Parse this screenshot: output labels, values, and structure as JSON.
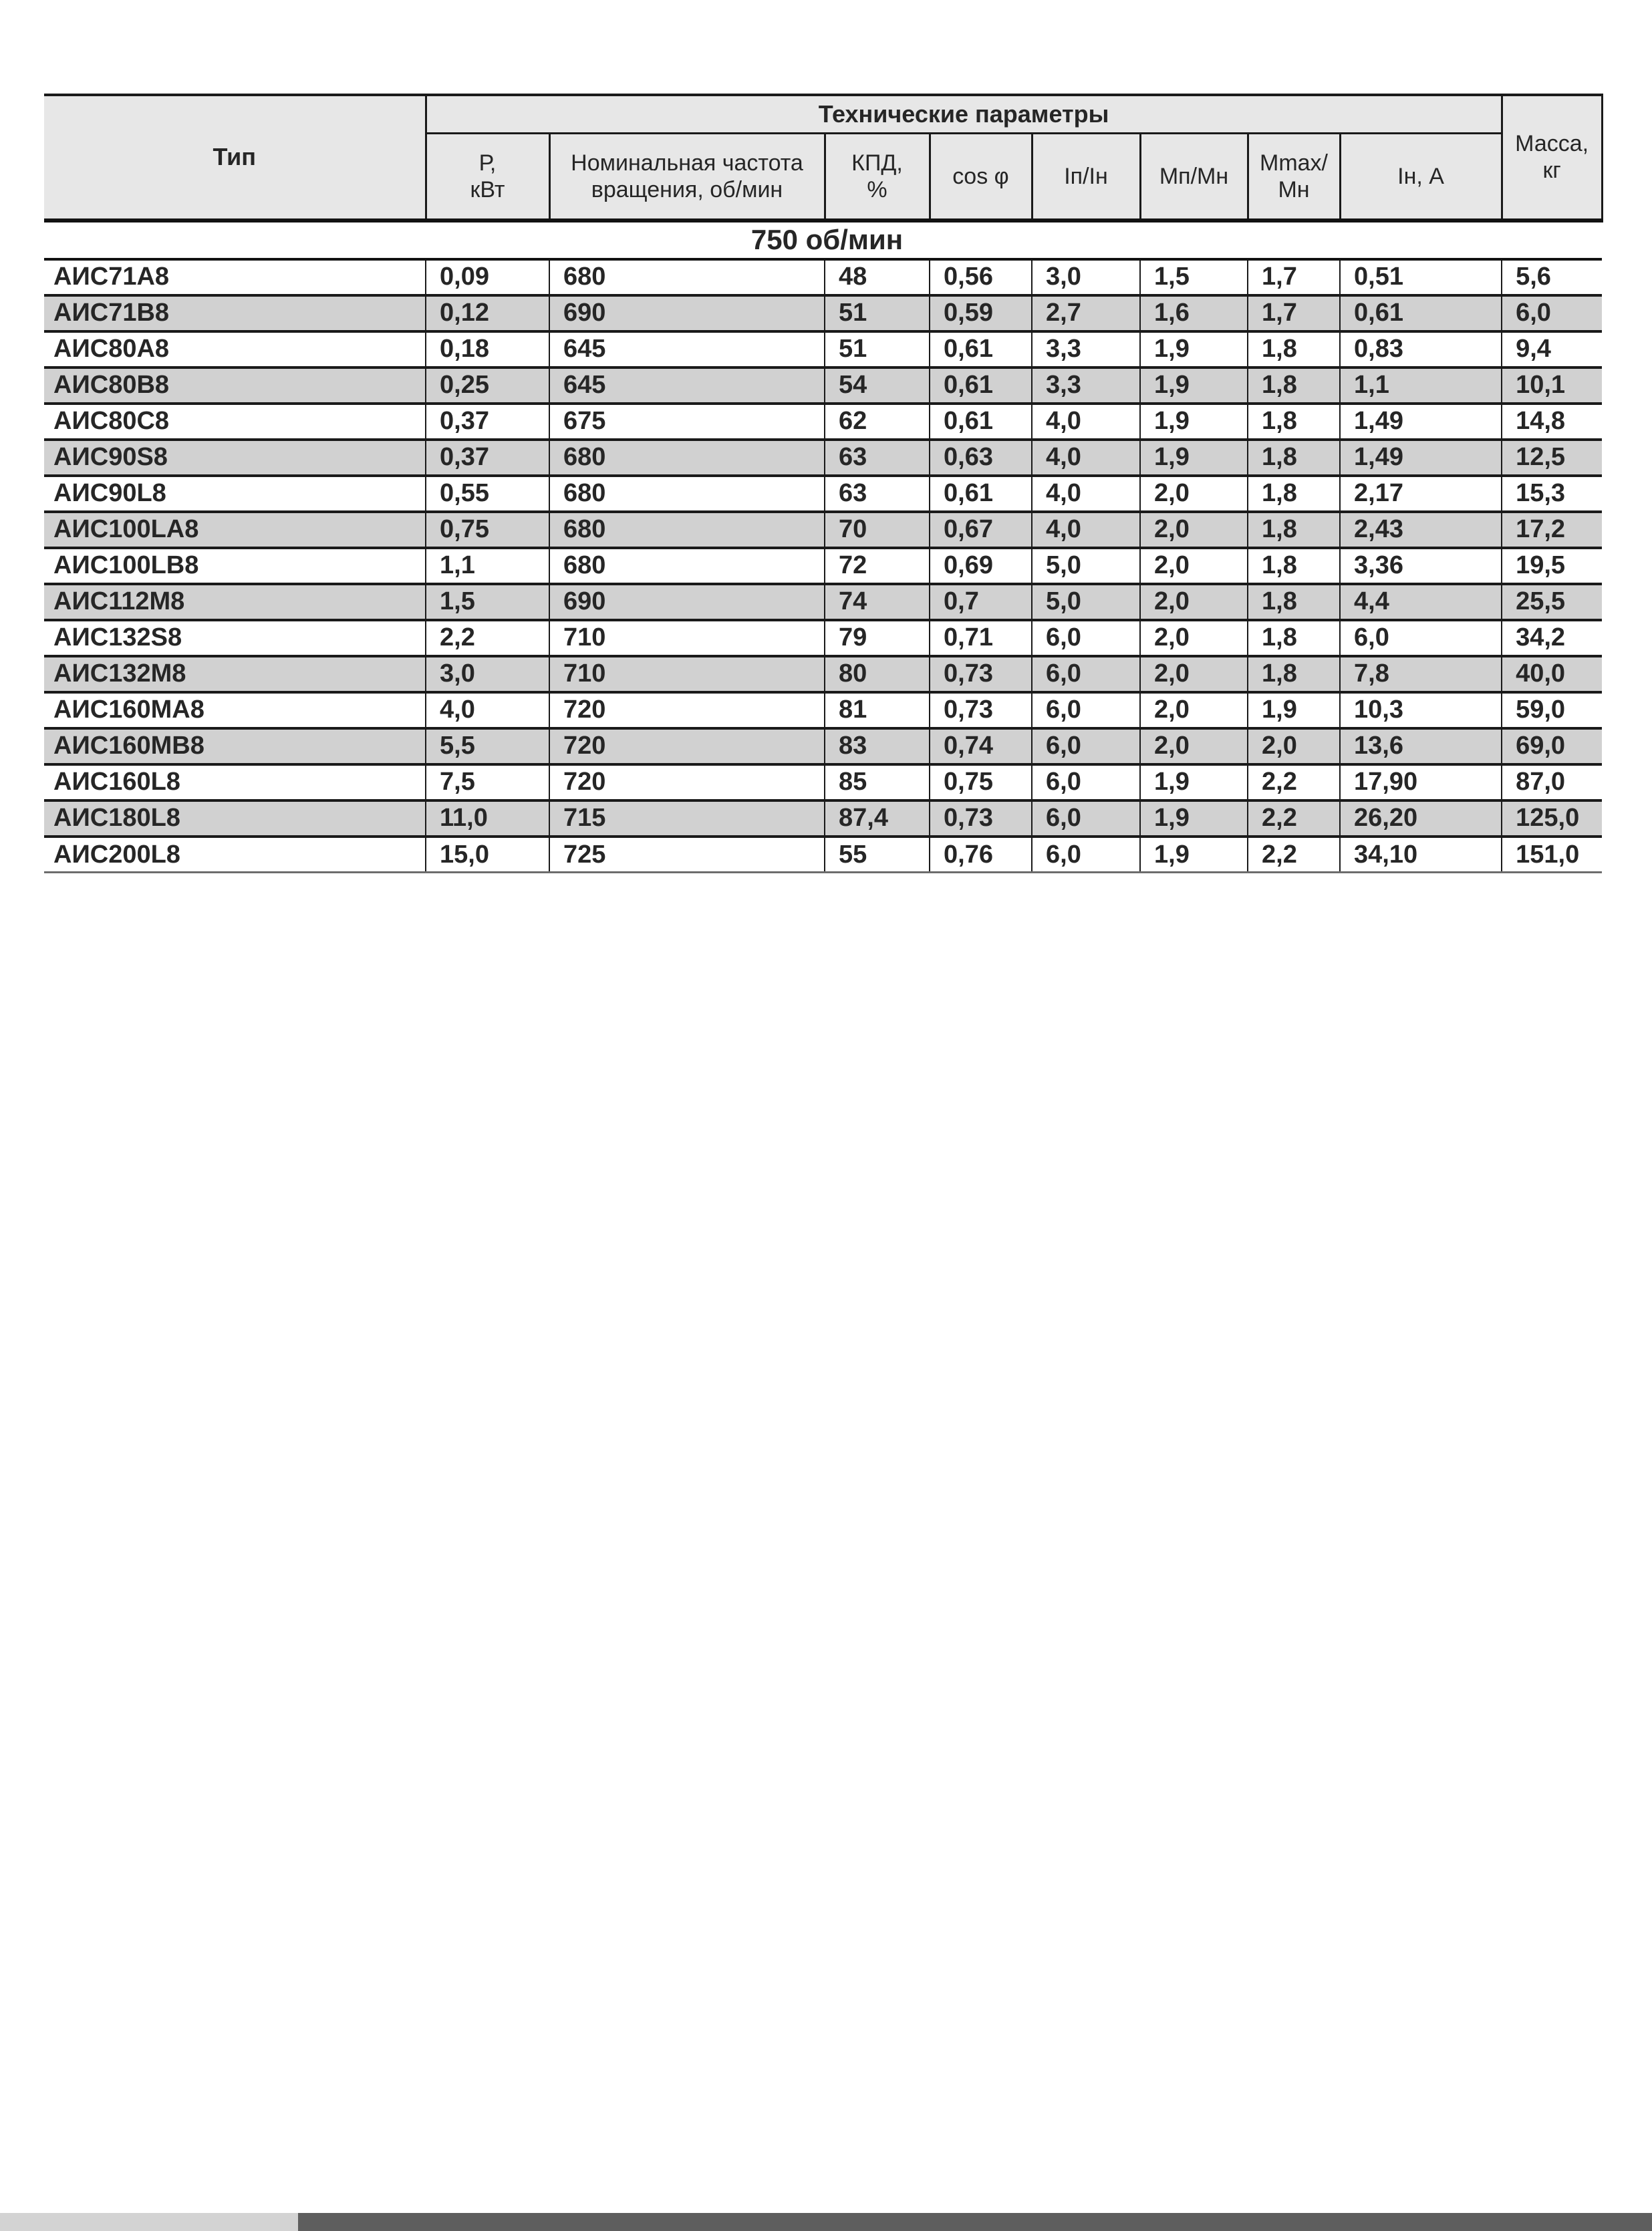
{
  "table": {
    "header": {
      "type": "Тип",
      "group": "Технические параметры",
      "sub": [
        "Р,\nкВт",
        "Номинальная частота\nвращения, об/мин",
        "КПД,\n%",
        "cos φ",
        "Iп/Iн",
        "Мп/Мн",
        "Mmax/\nМн",
        "Iн, А"
      ],
      "mass": "Масса,\nкг"
    },
    "section_label": "750 об/мин",
    "rows": [
      [
        "АИС71А8",
        "0,09",
        "680",
        "48",
        "0,56",
        "3,0",
        "1,5",
        "1,7",
        "0,51",
        "5,6"
      ],
      [
        "АИС71В8",
        "0,12",
        "690",
        "51",
        "0,59",
        "2,7",
        "1,6",
        "1,7",
        "0,61",
        "6,0"
      ],
      [
        "АИС80А8",
        "0,18",
        "645",
        "51",
        "0,61",
        "3,3",
        "1,9",
        "1,8",
        "0,83",
        "9,4"
      ],
      [
        "АИС80В8",
        "0,25",
        "645",
        "54",
        "0,61",
        "3,3",
        "1,9",
        "1,8",
        "1,1",
        "10,1"
      ],
      [
        "АИС80С8",
        "0,37",
        "675",
        "62",
        "0,61",
        "4,0",
        "1,9",
        "1,8",
        "1,49",
        "14,8"
      ],
      [
        "АИС90S8",
        "0,37",
        "680",
        "63",
        "0,63",
        "4,0",
        "1,9",
        "1,8",
        "1,49",
        "12,5"
      ],
      [
        "АИС90L8",
        "0,55",
        "680",
        "63",
        "0,61",
        "4,0",
        "2,0",
        "1,8",
        "2,17",
        "15,3"
      ],
      [
        "АИС100LA8",
        "0,75",
        "680",
        "70",
        "0,67",
        "4,0",
        "2,0",
        "1,8",
        "2,43",
        "17,2"
      ],
      [
        "АИС100LB8",
        "1,1",
        "680",
        "72",
        "0,69",
        "5,0",
        "2,0",
        "1,8",
        "3,36",
        "19,5"
      ],
      [
        "АИС112М8",
        "1,5",
        "690",
        "74",
        "0,7",
        "5,0",
        "2,0",
        "1,8",
        "4,4",
        "25,5"
      ],
      [
        "АИС132S8",
        "2,2",
        "710",
        "79",
        "0,71",
        "6,0",
        "2,0",
        "1,8",
        "6,0",
        "34,2"
      ],
      [
        "АИС132М8",
        "3,0",
        "710",
        "80",
        "0,73",
        "6,0",
        "2,0",
        "1,8",
        "7,8",
        "40,0"
      ],
      [
        "АИС160МА8",
        "4,0",
        "720",
        "81",
        "0,73",
        "6,0",
        "2,0",
        "1,9",
        "10,3",
        "59,0"
      ],
      [
        "АИС160МВ8",
        "5,5",
        "720",
        "83",
        "0,74",
        "6,0",
        "2,0",
        "2,0",
        "13,6",
        "69,0"
      ],
      [
        "АИС160L8",
        "7,5",
        "720",
        "85",
        "0,75",
        "6,0",
        "1,9",
        "2,2",
        "17,90",
        "87,0"
      ],
      [
        "АИС180L8",
        "11,0",
        "715",
        "87,4",
        "0,73",
        "6,0",
        "1,9",
        "2,2",
        "26,20",
        "125,0"
      ],
      [
        "АИС200L8",
        "15,0",
        "725",
        "55",
        "0,76",
        "6,0",
        "1,9",
        "2,2",
        "34,10",
        "151,0"
      ]
    ]
  },
  "colors": {
    "header_bg": "#e7e7e7",
    "row_shade_bg": "#d1d1d1",
    "border": "#1a1a1a",
    "footer_light": "#d3d3d3",
    "footer_dark": "#5e5e5e"
  }
}
